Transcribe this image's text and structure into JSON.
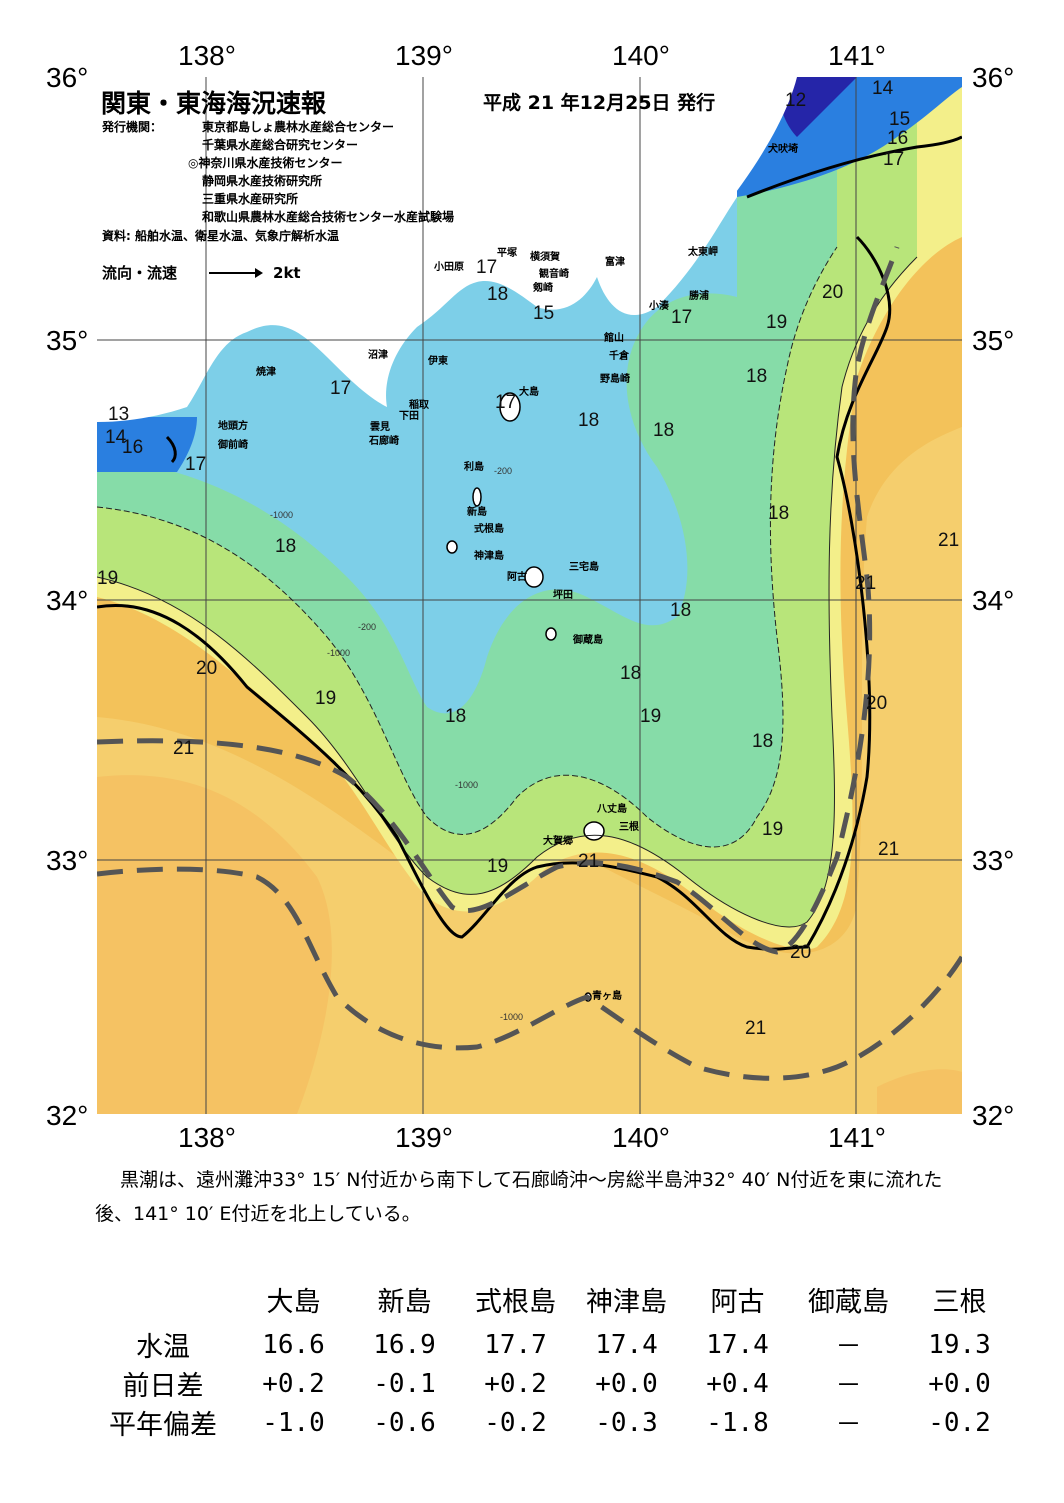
{
  "header": {
    "title": "関東・東海海況速報",
    "issue_date": "平成 21 年12月25日 発行"
  },
  "issuers": {
    "label": "発行機関：",
    "list": [
      "東京都島しょ農林水産総合センター",
      "千葉県水産総合研究センター",
      "◎神奈川県水産技術センター",
      "静岡県水産技術研究所",
      "三重県水産研究所",
      "和歌山県農林水産総合技術センター水産試験場"
    ]
  },
  "source": "資料: 船舶水温、衛星水温、気象庁解析水温",
  "legend": {
    "flow_label": "流向・流速",
    "speed": "2kt"
  },
  "axes": {
    "lon_ticks": [
      "138°",
      "139°",
      "140°",
      "141°"
    ],
    "lat_ticks": [
      "36°",
      "35°",
      "34°",
      "33°",
      "32°"
    ]
  },
  "isotherm_labels": [
    "12",
    "14",
    "15",
    "16",
    "17",
    "17",
    "17",
    "17",
    "17",
    "18",
    "18",
    "18",
    "18",
    "18",
    "18",
    "18",
    "18",
    "18",
    "18",
    "19",
    "19",
    "19",
    "19",
    "19",
    "19",
    "20",
    "20",
    "20",
    "20",
    "21",
    "21",
    "21",
    "21",
    "21",
    "21",
    "13",
    "14",
    "16",
    "16",
    "15"
  ],
  "places": [
    "犬吠埼",
    "太東岬",
    "勝浦",
    "小湊",
    "富津",
    "横須賀",
    "観音崎",
    "剱崎",
    "平塚",
    "小田原",
    "館山",
    "千倉",
    "野島崎",
    "沼津",
    "伊東",
    "焼津",
    "稲取",
    "下田",
    "雲見",
    "石廊崎",
    "地頭方",
    "御前崎",
    "大島",
    "利島",
    "新島",
    "式根島",
    "神津島",
    "三宅島",
    "阿古",
    "坪田",
    "御蔵島",
    "八丈島",
    "三根",
    "大賀郷",
    "青ヶ島"
  ],
  "depth_labels": [
    "-200",
    "-1000"
  ],
  "summary": "黒潮は、遠州灘沖33° 15′ N付近から南下して石廊崎沖～房総半島沖32° 40′ N付近を東に流れた後、141° 10′ E付近を北上している。",
  "observations": {
    "stations": [
      "大島",
      "新島",
      "式根島",
      "神津島",
      "阿古",
      "御蔵島",
      "三根"
    ],
    "rows": [
      {
        "label": "水温",
        "values": [
          "16.6",
          "16.9",
          "17.7",
          "17.4",
          "17.4",
          "－",
          "19.3"
        ]
      },
      {
        "label": "前日差",
        "values": [
          "+0.2",
          "-0.1",
          "+0.2",
          "+0.0",
          "+0.4",
          "－",
          "+0.0"
        ]
      },
      {
        "label": "平年偏差",
        "values": [
          "-1.0",
          "-0.6",
          "-0.2",
          "-0.3",
          "-1.8",
          "－",
          "-0.2"
        ]
      }
    ]
  },
  "colors": {
    "sea_warm": "#f3c25a",
    "sea_warmer": "#f2a642",
    "sea_21": "#f7d67a",
    "sea_20": "#f3ef8a",
    "sea_19": "#b8e57a",
    "sea_18": "#86dca8",
    "sea_17": "#7dcfe8",
    "sea_cold": "#2a7fe0",
    "sea_coldest": "#2525a8",
    "land": "#ffffff",
    "kuroshio_axis": "#555555"
  }
}
